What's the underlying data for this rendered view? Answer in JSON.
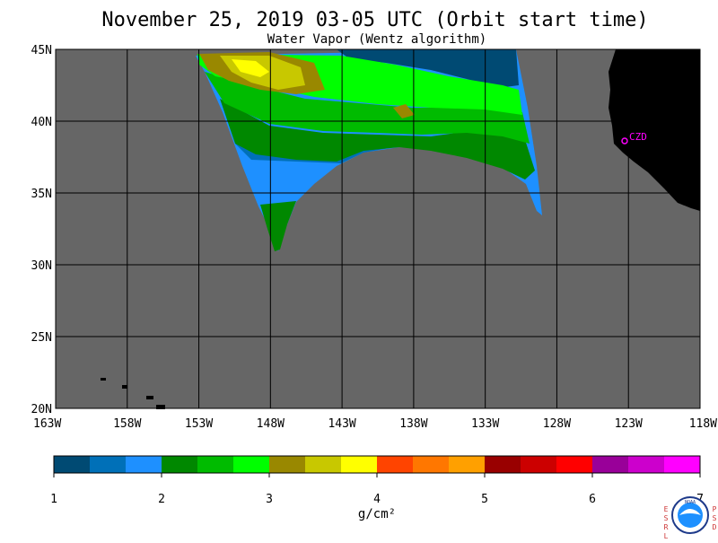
{
  "header": {
    "title": "November 25, 2019  03-05 UTC  (Orbit start time)",
    "subtitle": "Water Vapor (Wentz algorithm)"
  },
  "map": {
    "lat_labels": [
      "45N",
      "40N",
      "35N",
      "30N",
      "25N",
      "20N"
    ],
    "lon_labels": [
      "163W",
      "158W",
      "153W",
      "148W",
      "143W",
      "138W",
      "133W",
      "128W",
      "123W",
      "118W"
    ],
    "lat_range": [
      20,
      45
    ],
    "lon_range": [
      -163,
      -118
    ],
    "colors": {
      "ocean_nodata": "#666666",
      "land": "#000000",
      "grid": "#000000"
    },
    "station": {
      "label": "CZD",
      "color": "#ff00ff"
    }
  },
  "colorbar": {
    "unit": "g/cm²",
    "tick_labels": [
      "1",
      "2",
      "3",
      "4",
      "5",
      "6",
      "7"
    ],
    "range": [
      1,
      7
    ],
    "colors": [
      "#004a73",
      "#0070b8",
      "#1e90ff",
      "#008800",
      "#00bb00",
      "#00ff00",
      "#998800",
      "#c8c800",
      "#ffff00",
      "#ff4400",
      "#ff7700",
      "#ffa000",
      "#990000",
      "#cc0000",
      "#ff0000",
      "#990099",
      "#cc00cc",
      "#ff00ff"
    ]
  },
  "logo": {
    "left_letters": [
      "E",
      "S",
      "R",
      "L"
    ],
    "right_letters": [
      "P",
      "S",
      "D"
    ],
    "badge_text": "NOAA"
  }
}
